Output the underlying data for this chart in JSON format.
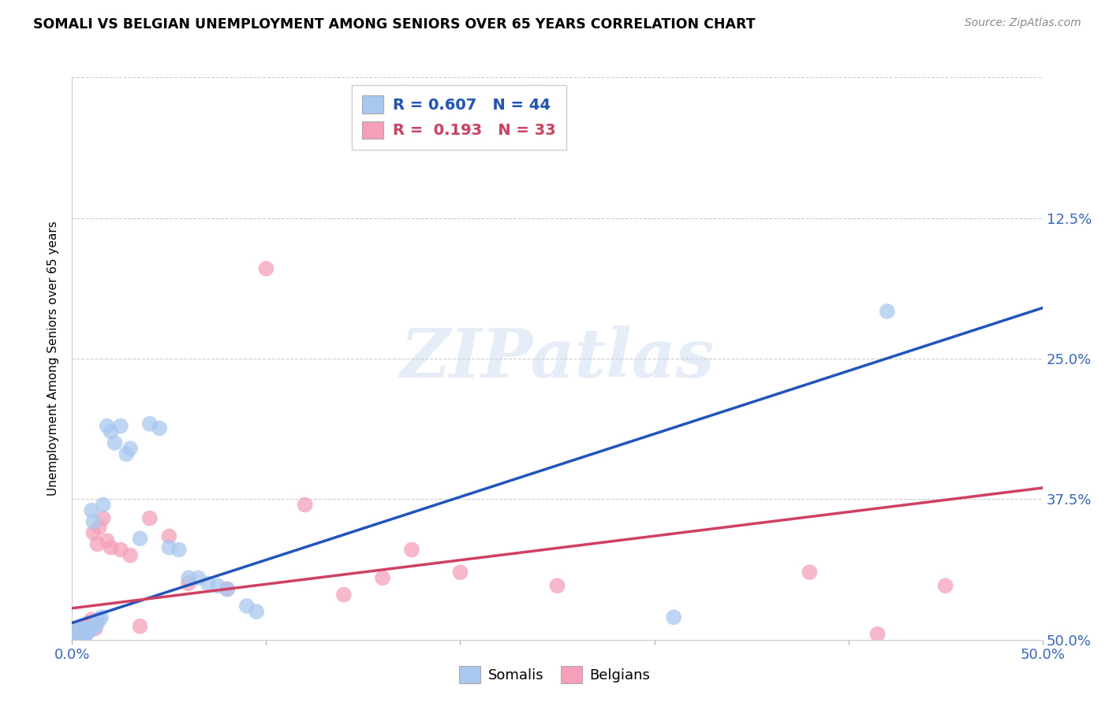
{
  "title": "SOMALI VS BELGIAN UNEMPLOYMENT AMONG SENIORS OVER 65 YEARS CORRELATION CHART",
  "source": "Source: ZipAtlas.com",
  "ylabel": "Unemployment Among Seniors over 65 years",
  "xlim": [
    0.0,
    0.5
  ],
  "ylim": [
    0.0,
    0.5
  ],
  "xticks": [
    0.0,
    0.1,
    0.2,
    0.3,
    0.4,
    0.5
  ],
  "yticks": [
    0.0,
    0.125,
    0.25,
    0.375,
    0.5
  ],
  "somali_color": "#a8c8f0",
  "belgian_color": "#f5a0b8",
  "somali_line_color": "#2255bb",
  "belgian_line_color": "#d04060",
  "R_somali": 0.607,
  "N_somali": 44,
  "R_belgian": 0.193,
  "N_belgian": 33,
  "watermark": "ZIPatlas",
  "somali_line": [
    0.0,
    0.015,
    0.5,
    0.295
  ],
  "belgian_line": [
    0.0,
    0.028,
    0.5,
    0.135
  ],
  "somali_x": [
    0.001,
    0.002,
    0.002,
    0.003,
    0.003,
    0.004,
    0.004,
    0.005,
    0.005,
    0.006,
    0.006,
    0.007,
    0.007,
    0.008,
    0.008,
    0.009,
    0.01,
    0.01,
    0.011,
    0.012,
    0.013,
    0.014,
    0.015,
    0.016,
    0.018,
    0.02,
    0.022,
    0.025,
    0.028,
    0.03,
    0.035,
    0.04,
    0.045,
    0.05,
    0.055,
    0.06,
    0.065,
    0.07,
    0.075,
    0.08,
    0.09,
    0.095,
    0.31,
    0.42
  ],
  "somali_y": [
    0.003,
    0.005,
    0.008,
    0.004,
    0.007,
    0.006,
    0.01,
    0.004,
    0.008,
    0.005,
    0.009,
    0.004,
    0.006,
    0.007,
    0.01,
    0.008,
    0.115,
    0.01,
    0.105,
    0.012,
    0.015,
    0.018,
    0.02,
    0.12,
    0.19,
    0.185,
    0.175,
    0.19,
    0.165,
    0.17,
    0.09,
    0.192,
    0.188,
    0.082,
    0.08,
    0.055,
    0.055,
    0.05,
    0.048,
    0.045,
    0.03,
    0.025,
    0.02,
    0.292
  ],
  "belgian_x": [
    0.002,
    0.003,
    0.004,
    0.005,
    0.006,
    0.007,
    0.008,
    0.009,
    0.01,
    0.011,
    0.012,
    0.013,
    0.014,
    0.016,
    0.018,
    0.02,
    0.025,
    0.03,
    0.035,
    0.04,
    0.05,
    0.06,
    0.08,
    0.1,
    0.12,
    0.14,
    0.16,
    0.175,
    0.2,
    0.25,
    0.38,
    0.415,
    0.45
  ],
  "belgian_y": [
    0.005,
    0.008,
    0.01,
    0.012,
    0.008,
    0.01,
    0.012,
    0.015,
    0.018,
    0.095,
    0.01,
    0.085,
    0.1,
    0.108,
    0.088,
    0.082,
    0.08,
    0.075,
    0.012,
    0.108,
    0.092,
    0.05,
    0.045,
    0.33,
    0.12,
    0.04,
    0.055,
    0.08,
    0.06,
    0.048,
    0.06,
    0.005,
    0.048
  ]
}
